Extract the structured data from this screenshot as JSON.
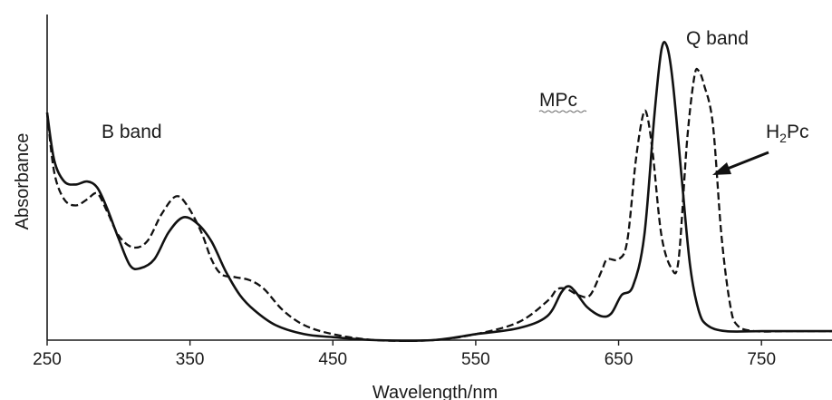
{
  "chart_data": {
    "type": "line",
    "title": "",
    "xlabel": "Wavelength/nm",
    "ylabel": "Absorbance",
    "xlim": [
      250,
      800
    ],
    "ylim": [
      0,
      1
    ],
    "x_ticks": [
      "250",
      "350",
      "450",
      "550",
      "650",
      "750"
    ],
    "x_tick_values": [
      250,
      350,
      450,
      550,
      650,
      750
    ],
    "y_ticks_shown": false,
    "grid": false,
    "annotations": {
      "b_band": "B band",
      "q_band": "Q band",
      "mpc": "MPc",
      "h2pc_main": "H",
      "h2pc_sub": "2",
      "h2pc_rest": "Pc"
    },
    "series": [
      {
        "style": "solid",
        "points": [
          [
            250,
            0.76
          ],
          [
            255,
            0.6
          ],
          [
            262,
            0.53
          ],
          [
            270,
            0.52
          ],
          [
            278,
            0.53
          ],
          [
            285,
            0.51
          ],
          [
            292,
            0.44
          ],
          [
            300,
            0.34
          ],
          [
            308,
            0.25
          ],
          [
            315,
            0.24
          ],
          [
            325,
            0.27
          ],
          [
            335,
            0.36
          ],
          [
            345,
            0.41
          ],
          [
            355,
            0.39
          ],
          [
            365,
            0.33
          ],
          [
            375,
            0.23
          ],
          [
            385,
            0.15
          ],
          [
            395,
            0.1
          ],
          [
            410,
            0.05
          ],
          [
            430,
            0.02
          ],
          [
            450,
            0.01
          ],
          [
            480,
            0.0
          ],
          [
            520,
            0.0
          ],
          [
            550,
            0.02
          ],
          [
            580,
            0.04
          ],
          [
            600,
            0.08
          ],
          [
            610,
            0.16
          ],
          [
            615,
            0.18
          ],
          [
            620,
            0.16
          ],
          [
            628,
            0.11
          ],
          [
            638,
            0.08
          ],
          [
            645,
            0.09
          ],
          [
            652,
            0.15
          ],
          [
            660,
            0.18
          ],
          [
            668,
            0.35
          ],
          [
            675,
            0.75
          ],
          [
            680,
            0.97
          ],
          [
            684,
            0.98
          ],
          [
            688,
            0.86
          ],
          [
            694,
            0.55
          ],
          [
            700,
            0.25
          ],
          [
            706,
            0.1
          ],
          [
            712,
            0.05
          ],
          [
            725,
            0.03
          ],
          [
            750,
            0.03
          ],
          [
            780,
            0.03
          ],
          [
            800,
            0.03
          ]
        ]
      },
      {
        "style": "dashed",
        "points": [
          [
            250,
            0.76
          ],
          [
            255,
            0.56
          ],
          [
            262,
            0.47
          ],
          [
            270,
            0.45
          ],
          [
            278,
            0.47
          ],
          [
            285,
            0.49
          ],
          [
            292,
            0.43
          ],
          [
            300,
            0.35
          ],
          [
            310,
            0.31
          ],
          [
            320,
            0.33
          ],
          [
            330,
            0.42
          ],
          [
            340,
            0.48
          ],
          [
            348,
            0.45
          ],
          [
            358,
            0.36
          ],
          [
            365,
            0.27
          ],
          [
            372,
            0.22
          ],
          [
            382,
            0.21
          ],
          [
            392,
            0.2
          ],
          [
            402,
            0.17
          ],
          [
            415,
            0.1
          ],
          [
            430,
            0.05
          ],
          [
            450,
            0.02
          ],
          [
            480,
            0.0
          ],
          [
            520,
            0.0
          ],
          [
            550,
            0.02
          ],
          [
            580,
            0.06
          ],
          [
            600,
            0.13
          ],
          [
            607,
            0.17
          ],
          [
            614,
            0.17
          ],
          [
            622,
            0.15
          ],
          [
            630,
            0.15
          ],
          [
            638,
            0.23
          ],
          [
            642,
            0.27
          ],
          [
            650,
            0.27
          ],
          [
            656,
            0.33
          ],
          [
            662,
            0.6
          ],
          [
            667,
            0.75
          ],
          [
            670,
            0.75
          ],
          [
            674,
            0.62
          ],
          [
            680,
            0.35
          ],
          [
            687,
            0.24
          ],
          [
            692,
            0.27
          ],
          [
            698,
            0.67
          ],
          [
            703,
            0.88
          ],
          [
            706,
            0.9
          ],
          [
            710,
            0.85
          ],
          [
            716,
            0.72
          ],
          [
            722,
            0.35
          ],
          [
            728,
            0.12
          ],
          [
            733,
            0.05
          ],
          [
            745,
            0.03
          ],
          [
            770,
            0.03
          ],
          [
            800,
            0.03
          ]
        ]
      }
    ]
  }
}
